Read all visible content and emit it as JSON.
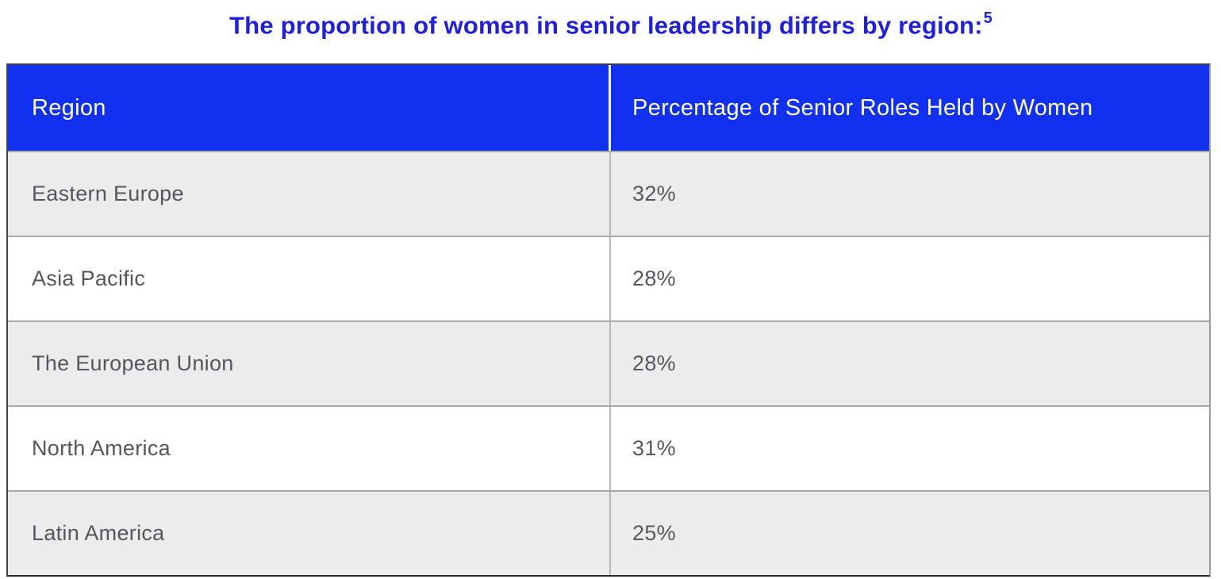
{
  "title": {
    "text": "The proportion of women in senior leadership differs by region:",
    "footnote_marker": "5",
    "color": "#1e1fe2"
  },
  "table": {
    "columns": [
      "Region",
      "Percentage of Senior Roles Held by Women"
    ],
    "rows": [
      {
        "region": "Eastern Europe",
        "value": "32%"
      },
      {
        "region": "Asia Pacific",
        "value": "28%"
      },
      {
        "region": "The European Union",
        "value": "28%"
      },
      {
        "region": "North America",
        "value": "31%"
      },
      {
        "region": "Latin America",
        "value": "25%"
      }
    ],
    "colors": {
      "header_background": "#1130f0",
      "header_text": "#ffffff",
      "alt_row_background": "#ebedec",
      "white_row_background": "#ffffff",
      "row_text": "#55575f",
      "row_divider": "#a7a9aa",
      "column_divider_body": "#b6b8b9",
      "column_divider_header": "#ffffff"
    }
  },
  "chart_data": {
    "type": "table",
    "title": "The proportion of women in senior leadership differs by region:",
    "footnote_marker": "5",
    "columns": [
      "Region",
      "Percentage of Senior Roles Held by Women"
    ],
    "categories": [
      "Eastern Europe",
      "Asia Pacific",
      "The European Union",
      "North America",
      "Latin America"
    ],
    "values": [
      32,
      28,
      28,
      31,
      25
    ],
    "value_unit": "%"
  }
}
